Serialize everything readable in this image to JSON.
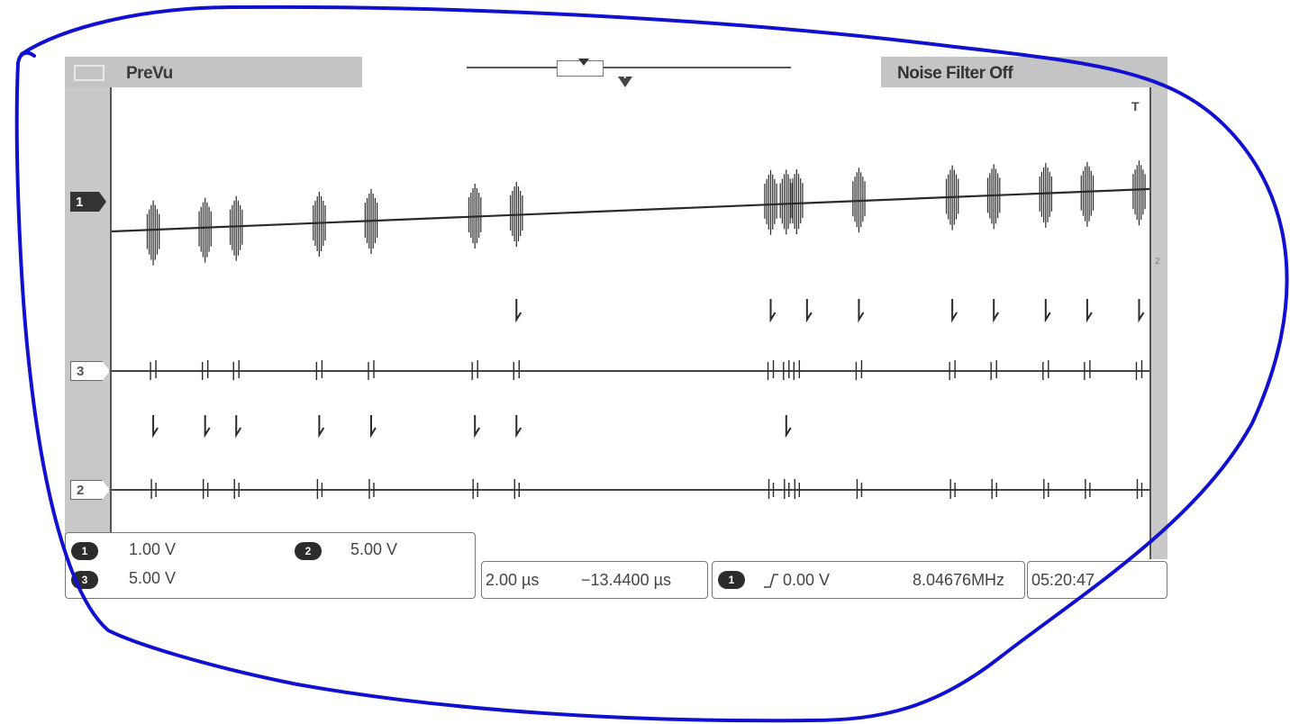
{
  "header": {
    "mode_label": "PreVu",
    "noise_filter": "Noise Filter Off"
  },
  "markers": {
    "trigger_position": "T",
    "channel_1": "1",
    "channel_3": "3",
    "channel_2": "2",
    "right_trigger_level": "T",
    "right_tick": "2"
  },
  "readouts": {
    "ch1_scale": "1.00 V",
    "ch2_scale": "5.00 V",
    "ch3_scale": "5.00 V",
    "ch1_badge": "1",
    "ch2_badge": "2",
    "ch3_badge": "3",
    "timebase": "2.00 µs",
    "horizontal_position": "−13.4400 µs",
    "trigger_badge": "1",
    "trigger_level": "0.00 V",
    "frequency": "8.04676MHz",
    "clock": "05:20:47"
  },
  "colors": {
    "annotation": "#1010d0",
    "trace": "#2a2a2a"
  },
  "waveform": {
    "bursts": [
      0.04,
      0.09,
      0.12,
      0.2,
      0.25,
      0.35,
      0.39,
      0.635,
      0.65,
      0.66,
      0.72,
      0.81,
      0.85,
      0.9,
      0.94,
      0.99
    ],
    "ch3_pulses": [
      0.39,
      0.635,
      0.67,
      0.72,
      0.81,
      0.85,
      0.9,
      0.94,
      0.99
    ],
    "ch2_pulses": [
      0.04,
      0.09,
      0.12,
      0.2,
      0.25,
      0.35,
      0.39,
      0.65
    ]
  }
}
